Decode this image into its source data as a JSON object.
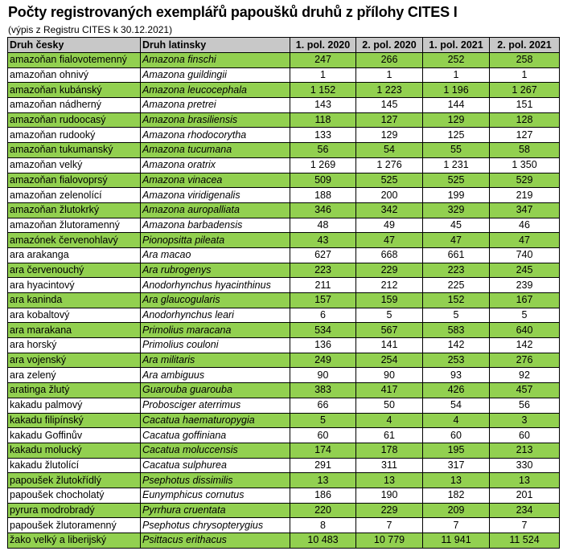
{
  "title": "Počty registrovaných exemplářů papoušků druhů z přílohy CITES I",
  "subtitle": "(výpis z Registru CITES k 30.12.2021)",
  "colors": {
    "highlight_row": "#92d050",
    "header": "#c8c8c8"
  },
  "columns": [
    "Druh česky",
    "Druh latinsky",
    "1. pol. 2020",
    "2. pol. 2020",
    "1. pol. 2021",
    "2. pol. 2021"
  ],
  "rows": [
    [
      "amazoňan fialovotemenný",
      "Amazona finschi",
      "247",
      "266",
      "252",
      "258"
    ],
    [
      "amazoňan ohnivý",
      "Amazona guildingii",
      "1",
      "1",
      "1",
      "1"
    ],
    [
      "amazoňan kubánský",
      "Amazona leucocephala",
      "1 152",
      "1 223",
      "1 196",
      "1 267"
    ],
    [
      "amazoňan nádherný",
      "Amazona pretrei",
      "143",
      "145",
      "144",
      "151"
    ],
    [
      "amazoňan rudoocasý",
      "Amazona brasiliensis",
      "118",
      "127",
      "129",
      "128"
    ],
    [
      "amazoňan rudooký",
      "Amazona rhodocorytha",
      "133",
      "129",
      "125",
      "127"
    ],
    [
      "amazoňan tukumanský",
      "Amazona tucumana",
      "56",
      "54",
      "55",
      "58"
    ],
    [
      "amazoňan velký",
      "Amazona oratrix",
      "1 269",
      "1 276",
      "1 231",
      "1 350"
    ],
    [
      "amazoňan fialovoprsý",
      "Amazona vinacea",
      "509",
      "525",
      "525",
      "529"
    ],
    [
      "amazoňan zelenolící",
      "Amazona viridigenalis",
      "188",
      "200",
      "199",
      "219"
    ],
    [
      "amazoňan žlutokrký",
      "Amazona auropalliata",
      "346",
      "342",
      "329",
      "347"
    ],
    [
      "amazoňan žlutoramenný",
      "Amazona barbadensis",
      "48",
      "49",
      "45",
      "46"
    ],
    [
      "amazónek červenohlavý",
      "Pionopsitta pileata",
      "43",
      "47",
      "47",
      "47"
    ],
    [
      "ara arakanga",
      "Ara macao",
      "627",
      "668",
      "661",
      "740"
    ],
    [
      "ara červenouchý",
      "Ara rubrogenys",
      "223",
      "229",
      "223",
      "245"
    ],
    [
      "ara hyacintový",
      "Anodorhynchus hyacinthinus",
      "211",
      "212",
      "225",
      "239"
    ],
    [
      "ara kaninda",
      "Ara glaucogularis",
      "157",
      "159",
      "152",
      "167"
    ],
    [
      "ara kobaltový",
      "Anodorhynchus leari",
      "6",
      "5",
      "5",
      "5"
    ],
    [
      "ara marakana",
      "Primolius maracana",
      "534",
      "567",
      "583",
      "640"
    ],
    [
      "ara horský",
      "Primolius couloni",
      "136",
      "141",
      "142",
      "142"
    ],
    [
      "ara vojenský",
      "Ara militaris",
      "249",
      "254",
      "253",
      "276"
    ],
    [
      "ara zelený",
      "Ara ambiguus",
      "90",
      "90",
      "93",
      "92"
    ],
    [
      "aratinga žlutý",
      "Guarouba guarouba",
      "383",
      "417",
      "426",
      "457"
    ],
    [
      "kakadu palmový",
      "Probosciger aterrimus",
      "66",
      "50",
      "54",
      "56"
    ],
    [
      "kakadu filipínský",
      "Cacatua haematuropygia",
      "5",
      "4",
      "4",
      "3"
    ],
    [
      "kakadu Goffinův",
      "Cacatua goffiniana",
      "60",
      "61",
      "60",
      "60"
    ],
    [
      "kakadu molucký",
      "Cacatua moluccensis",
      "174",
      "178",
      "195",
      "213"
    ],
    [
      "kakadu žlutolící",
      "Cacatua sulphurea",
      "291",
      "311",
      "317",
      "330"
    ],
    [
      "papoušek žlutokřídlý",
      "Psephotus dissimilis",
      "13",
      "13",
      "13",
      "13"
    ],
    [
      "papoušek chocholatý",
      "Eunymphicus cornutus",
      "186",
      "190",
      "182",
      "201"
    ],
    [
      "pyrura modrobradý",
      "Pyrrhura cruentata",
      "220",
      "229",
      "209",
      "234"
    ],
    [
      "papoušek žlutoramenný",
      "Psephotus chrysopterygius",
      "8",
      "7",
      "7",
      "7"
    ],
    [
      "žako velký a liberijský",
      "Psittacus erithacus",
      "10 483",
      "10 779",
      "11 941",
      "11 524"
    ]
  ]
}
